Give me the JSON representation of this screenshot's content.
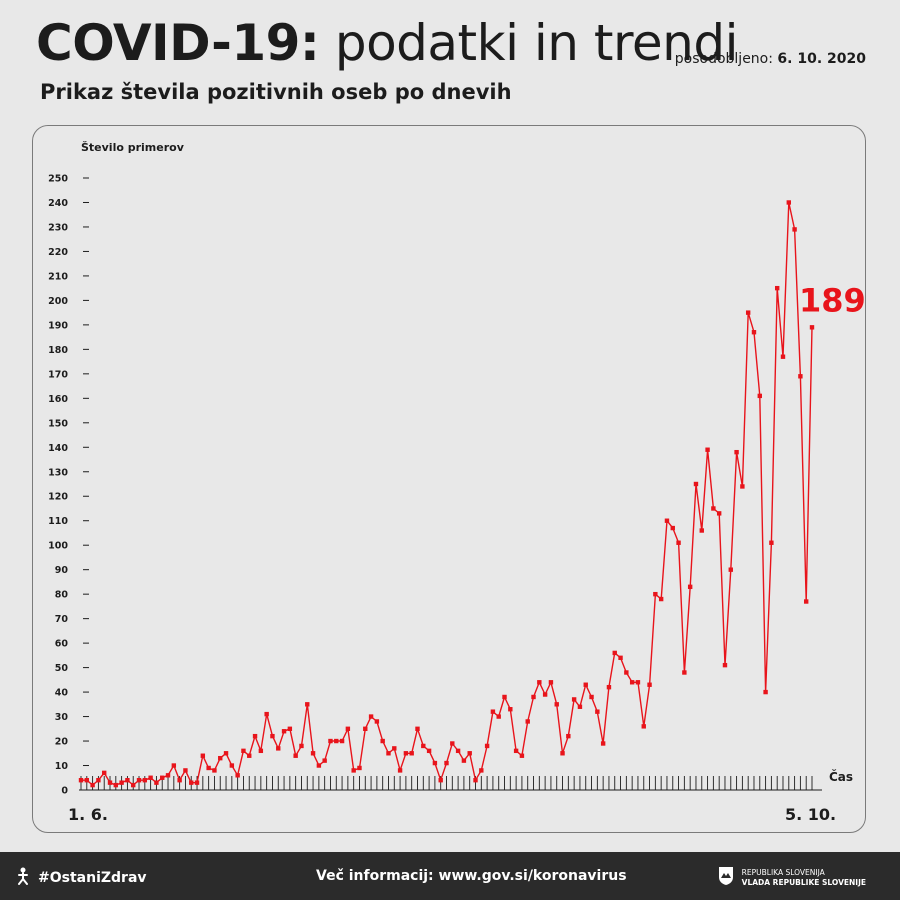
{
  "header": {
    "title_bold": "COVID-19:",
    "title_rest": "podatki in trendi",
    "updated_label": "posodobljeno:",
    "updated_date": "6. 10. 2020",
    "subtitle": "Prikaz števila pozitivnih oseb po dnevih"
  },
  "footer": {
    "hashtag": "#OstaniZdrav",
    "more_info": "Več informacij: www.gov.si/koronavirus",
    "gov_line1": "REPUBLIKA SLOVENIJA",
    "gov_line2": "VLADA REPUBLIKE SLOVENIJE"
  },
  "colors": {
    "line": "#e8141b",
    "background": "#e8e8e8",
    "footer": "#2b2b2b",
    "text": "#1c1c1c"
  },
  "chart_data": {
    "type": "line",
    "ylabel": "Število primerov",
    "xlabel": "Čas",
    "ylim": [
      0,
      250
    ],
    "y_ticks": [
      0,
      10,
      20,
      30,
      40,
      50,
      60,
      70,
      80,
      90,
      100,
      110,
      120,
      130,
      140,
      150,
      160,
      170,
      180,
      190,
      200,
      210,
      220,
      230,
      240,
      250
    ],
    "x_start_label": "1. 6.",
    "x_end_label": "5. 10.",
    "last_value_label": "189",
    "grid": false,
    "series": [
      {
        "values": [
          4,
          4,
          2,
          4,
          7,
          3,
          2,
          3,
          4,
          2,
          4,
          4,
          5,
          3,
          5,
          6,
          10,
          4,
          8,
          3,
          3,
          14,
          9,
          8,
          13,
          15,
          10,
          6,
          16,
          14,
          22,
          16,
          31,
          22,
          17,
          24,
          25,
          14,
          18,
          35,
          15,
          10,
          12,
          20,
          20,
          20,
          25,
          8,
          9,
          25,
          30,
          28,
          20,
          15,
          17,
          8,
          15,
          15,
          25,
          18,
          16,
          11,
          4,
          11,
          19,
          16,
          12,
          15,
          4,
          8,
          18,
          32,
          30,
          38,
          33,
          16,
          14,
          28,
          38,
          44,
          39,
          44,
          35,
          15,
          22,
          37,
          34,
          43,
          38,
          32,
          19,
          42,
          56,
          54,
          48,
          44,
          44,
          26,
          43,
          80,
          78,
          110,
          107,
          101,
          48,
          83,
          125,
          106,
          139,
          115,
          113,
          51,
          90,
          138,
          124,
          195,
          187,
          161,
          40,
          101,
          205,
          177,
          240,
          229,
          169,
          77,
          189
        ]
      }
    ]
  }
}
